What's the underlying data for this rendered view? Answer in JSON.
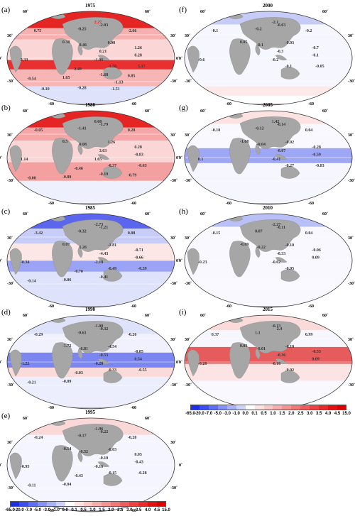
{
  "lat_labels": [
    "60˚",
    "30˚",
    "0˚",
    "-30˚",
    "-60"
  ],
  "colorbar": {
    "ticks": [
      "-65.0",
      "-20.0",
      "-7.0",
      "-5.0",
      "-3.0",
      "-1.0",
      "0.0",
      "0.1",
      "0.5",
      "1.0",
      "1.5",
      "2.0",
      "2.5",
      "3.0",
      "3.5",
      "4.0",
      "4.5",
      "15.0"
    ],
    "colors": [
      "#1f2fe6",
      "#3d4ef0",
      "#5f6ff3",
      "#8491f6",
      "#a9b2f8",
      "#cdd2fb",
      "#ffffff",
      "#fde2e2",
      "#fbc8c8",
      "#f8adad",
      "#f59393",
      "#f27878",
      "#ee5d5d",
      "#eb4343",
      "#e72a2a",
      "#e31212",
      "#dc0000"
    ]
  },
  "panels": [
    {
      "id": "a",
      "label": "(a)",
      "title": "1975",
      "values": [
        {
          "text": "2.27",
          "color": "#e31a1a"
        },
        {
          "text": "0.75",
          "color": "#333"
        },
        {
          "text": "-0.25",
          "color": "#333"
        },
        {
          "text": "-2.03",
          "color": "#333"
        },
        {
          "text": "-2.66",
          "color": "#333"
        },
        {
          "text": "0.38",
          "color": "#333"
        },
        {
          "text": "0.46",
          "color": "#333"
        },
        {
          "text": "0.08",
          "color": "#333"
        },
        {
          "text": "1.26",
          "color": "#333"
        },
        {
          "text": "0.21",
          "color": "#333"
        },
        {
          "text": "0.28",
          "color": "#333"
        },
        {
          "text": "3.33",
          "color": "#333"
        },
        {
          "text": "-1.06",
          "color": "#333"
        },
        {
          "text": "-1.58",
          "color": "#333"
        },
        {
          "text": "5.17",
          "color": "#333"
        },
        {
          "text": "2.49",
          "color": "#333"
        },
        {
          "text": "1.65",
          "color": "#333"
        },
        {
          "text": "-0.54",
          "color": "#333"
        },
        {
          "text": "-1.68",
          "color": "#333"
        },
        {
          "text": "0.85",
          "color": "#333"
        },
        {
          "text": "-1.13",
          "color": "#333"
        },
        {
          "text": "-0.10",
          "color": "#333"
        },
        {
          "text": "-0.28",
          "color": "#333"
        },
        {
          "text": "-1.51",
          "color": "#333"
        }
      ]
    },
    {
      "id": "b",
      "label": "(b)",
      "title": "1980",
      "values": [
        {
          "text": "0.68",
          "color": "#333"
        },
        {
          "text": "-0.05",
          "color": "#333"
        },
        {
          "text": "-1.41",
          "color": "#333"
        },
        {
          "text": "-1.79",
          "color": "#333"
        },
        {
          "text": "0.28",
          "color": "#333"
        },
        {
          "text": "0.5",
          "color": "#333"
        },
        {
          "text": "0.08",
          "color": "#333"
        },
        {
          "text": "1.26",
          "color": "#333"
        },
        {
          "text": "0.28",
          "color": "#333"
        },
        {
          "text": "3.63",
          "color": "#333"
        },
        {
          "text": "-0.83",
          "color": "#333"
        },
        {
          "text": "1.14",
          "color": "#333"
        },
        {
          "text": "1.65",
          "color": "#333"
        },
        {
          "text": "-0.37",
          "color": "#333"
        },
        {
          "text": "-0.63",
          "color": "#333"
        },
        {
          "text": "-0.46",
          "color": "#333"
        },
        {
          "text": "-0.89",
          "color": "#333"
        },
        {
          "text": "-0.08",
          "color": "#333"
        },
        {
          "text": "-0.19",
          "color": "#333"
        },
        {
          "text": "-0.79",
          "color": "#333"
        }
      ]
    },
    {
      "id": "c",
      "label": "(c)",
      "title": "1985",
      "values": [
        {
          "text": "-2.73",
          "color": "#333"
        },
        {
          "text": "-3.42",
          "color": "#333"
        },
        {
          "text": "-0.32",
          "color": "#333"
        },
        {
          "text": "-1.21",
          "color": "#333"
        },
        {
          "text": "0.08",
          "color": "#333"
        },
        {
          "text": "0.07",
          "color": "#333"
        },
        {
          "text": "1.26",
          "color": "#333"
        },
        {
          "text": "-1.81",
          "color": "#333"
        },
        {
          "text": "-0.71",
          "color": "#333"
        },
        {
          "text": "-4.43",
          "color": "#333"
        },
        {
          "text": "-0.66",
          "color": "#333"
        },
        {
          "text": "-0.34",
          "color": "#333"
        },
        {
          "text": "-2.18",
          "color": "#333"
        },
        {
          "text": "-0.49",
          "color": "#333"
        },
        {
          "text": "-0.39",
          "color": "#333"
        },
        {
          "text": "-0.70",
          "color": "#333"
        },
        {
          "text": "-0.06",
          "color": "#333"
        },
        {
          "text": "-0.14",
          "color": "#333"
        },
        {
          "text": "-0.41",
          "color": "#333"
        }
      ]
    },
    {
      "id": "d",
      "label": "(d)",
      "title": "1990",
      "values": [
        {
          "text": "-1.00",
          "color": "#333"
        },
        {
          "text": "-0.29",
          "color": "#333"
        },
        {
          "text": "-0.61",
          "color": "#333"
        },
        {
          "text": "-0.32",
          "color": "#333"
        },
        {
          "text": "-0.26",
          "color": "#333"
        },
        {
          "text": "-1.72",
          "color": "#333"
        },
        {
          "text": "-6.81",
          "color": "#333"
        },
        {
          "text": "-4.54",
          "color": "#333"
        },
        {
          "text": "-0.85",
          "color": "#333"
        },
        {
          "text": "-0.53",
          "color": "#333"
        },
        {
          "text": "0.54",
          "color": "#333"
        },
        {
          "text": "-1.22",
          "color": "#333"
        },
        {
          "text": "-0.28",
          "color": "#333"
        },
        {
          "text": "-0.33",
          "color": "#333"
        },
        {
          "text": "-0.55",
          "color": "#333"
        },
        {
          "text": "-0.03",
          "color": "#333"
        },
        {
          "text": "-0.09",
          "color": "#333"
        },
        {
          "text": "-0.21",
          "color": "#333"
        }
      ]
    },
    {
      "id": "e",
      "label": "(e)",
      "title": "1995",
      "values": [
        {
          "text": "-1.96",
          "color": "#333"
        },
        {
          "text": "-0.24",
          "color": "#333"
        },
        {
          "text": "-0.17",
          "color": "#333"
        },
        {
          "text": "-0.22",
          "color": "#333"
        },
        {
          "text": "-0.20",
          "color": "#333"
        },
        {
          "text": "-0.14",
          "color": "#333"
        },
        {
          "text": "-0.32",
          "color": "#333"
        },
        {
          "text": "-0.03",
          "color": "#333"
        },
        {
          "text": "0.05",
          "color": "#333"
        },
        {
          "text": "-0.10",
          "color": "#333"
        },
        {
          "text": "-0.43",
          "color": "#333"
        },
        {
          "text": "-0.95",
          "color": "#333"
        },
        {
          "text": "-0.16",
          "color": "#333"
        },
        {
          "text": "-0.15",
          "color": "#333"
        },
        {
          "text": "-0.28",
          "color": "#333"
        },
        {
          "text": "-0.43",
          "color": "#333"
        },
        {
          "text": "-0.04",
          "color": "#333"
        },
        {
          "text": "-0.11",
          "color": "#333"
        }
      ]
    },
    {
      "id": "f",
      "label": "(f)",
      "title": "2000",
      "values": [
        {
          "text": "-2.1",
          "color": "#333"
        },
        {
          "text": "-0.1",
          "color": "#333"
        },
        {
          "text": "-0.2",
          "color": "#333"
        },
        {
          "text": "-0.03",
          "color": "#333"
        },
        {
          "text": "-0.2",
          "color": "#333"
        },
        {
          "text": "0.05",
          "color": "#333"
        },
        {
          "text": "-0.1",
          "color": "#333"
        },
        {
          "text": "-0.03",
          "color": "#333"
        },
        {
          "text": "-0.7",
          "color": "#333"
        },
        {
          "text": "-0.3",
          "color": "#333"
        },
        {
          "text": "-0.1",
          "color": "#333"
        },
        {
          "text": "-0.6",
          "color": "#333"
        },
        {
          "text": "-0.2",
          "color": "#333"
        },
        {
          "text": "-0.1",
          "color": "#333"
        },
        {
          "text": "-0.05",
          "color": "#333"
        }
      ]
    },
    {
      "id": "g",
      "label": "(g)",
      "title": "2005",
      "values": [
        {
          "text": "1.42",
          "color": "#333"
        },
        {
          "text": "-0.18",
          "color": "#333"
        },
        {
          "text": "-0.12",
          "color": "#333"
        },
        {
          "text": "-0.14",
          "color": "#333"
        },
        {
          "text": "0.04",
          "color": "#333"
        },
        {
          "text": "-1.68",
          "color": "#333"
        },
        {
          "text": "-0.04",
          "color": "#333"
        },
        {
          "text": "-0.02",
          "color": "#333"
        },
        {
          "text": "-0.28",
          "color": "#333"
        },
        {
          "text": "-0.07",
          "color": "#333"
        },
        {
          "text": "-0.59",
          "color": "#333"
        },
        {
          "text": "0.1",
          "color": "#333"
        },
        {
          "text": "-0.41",
          "color": "#333"
        },
        {
          "text": "-0.27",
          "color": "#333"
        },
        {
          "text": "-0.03",
          "color": "#333"
        }
      ]
    },
    {
      "id": "h",
      "label": "(h)",
      "title": "2010",
      "values": [
        {
          "text": "-2.27",
          "color": "#333"
        },
        {
          "text": "-0.15",
          "color": "#333"
        },
        {
          "text": "0.07",
          "color": "#333"
        },
        {
          "text": "-0.11",
          "color": "#333"
        },
        {
          "text": "0.04",
          "color": "#333"
        },
        {
          "text": "-0.09",
          "color": "#333"
        },
        {
          "text": "-0.22",
          "color": "#333"
        },
        {
          "text": "-0.10",
          "color": "#333"
        },
        {
          "text": "-0.06",
          "color": "#333"
        },
        {
          "text": "-0.33",
          "color": "#333"
        },
        {
          "text": "0.09",
          "color": "#333"
        },
        {
          "text": "-0.23",
          "color": "#333"
        },
        {
          "text": "-0.02",
          "color": "#333"
        },
        {
          "text": "-0.05",
          "color": "#333"
        }
      ]
    },
    {
      "id": "i",
      "label": "(i)",
      "title": "2015",
      "values": [
        {
          "text": "-0.13",
          "color": "#333"
        },
        {
          "text": "0.37",
          "color": "#333"
        },
        {
          "text": "1.1",
          "color": "#333"
        },
        {
          "text": "2.4",
          "color": "#333"
        },
        {
          "text": "0.99",
          "color": "#333"
        },
        {
          "text": "0.03",
          "color": "#333"
        },
        {
          "text": "-0.01",
          "color": "#333"
        },
        {
          "text": "-0.18",
          "color": "#333"
        },
        {
          "text": "-0.53",
          "color": "#333"
        },
        {
          "text": "-0.36",
          "color": "#333"
        },
        {
          "text": "0.09",
          "color": "#333"
        },
        {
          "text": "-0.26",
          "color": "#333"
        },
        {
          "text": "-0.16",
          "color": "#333"
        },
        {
          "text": "-0.02",
          "color": "#333"
        }
      ]
    }
  ]
}
